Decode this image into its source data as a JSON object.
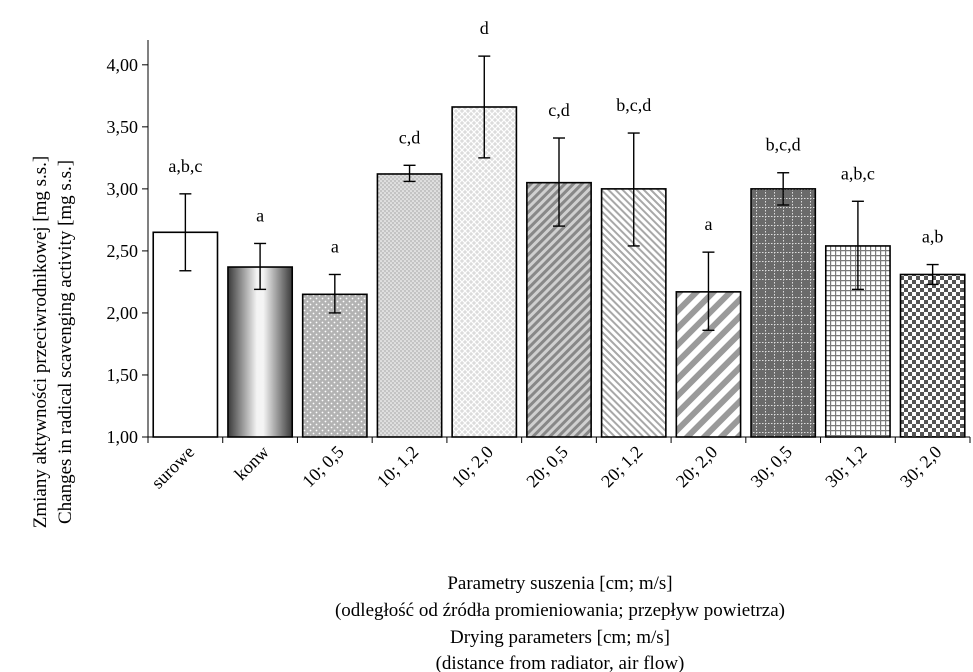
{
  "chart_data": {
    "type": "bar",
    "categories": [
      "surowe",
      "konw",
      "10; 0,5",
      "10; 1,2",
      "10; 2,0",
      "20; 0,5",
      "20; 1,2",
      "20; 2,0",
      "30; 0,5",
      "30; 1,2",
      "30; 2,0"
    ],
    "values": [
      2.65,
      2.37,
      2.15,
      3.12,
      3.66,
      3.05,
      3.0,
      2.17,
      3.0,
      2.54,
      2.31
    ],
    "error_low": [
      2.34,
      2.19,
      2.0,
      3.06,
      3.25,
      2.7,
      2.54,
      1.86,
      2.87,
      2.19,
      2.23
    ],
    "error_high": [
      2.96,
      2.56,
      2.31,
      3.19,
      4.07,
      3.41,
      3.45,
      2.49,
      3.13,
      2.9,
      2.39
    ],
    "significance_labels": [
      "a,b,c",
      "a",
      "a",
      "c,d",
      "d",
      "c,d",
      "b,c,d",
      "a",
      "b,c,d",
      "a,b,c",
      "a,b"
    ],
    "ylim": [
      1.0,
      4.0
    ],
    "yticks": [
      "1,00",
      "1,50",
      "2,00",
      "2,50",
      "3,00",
      "3,50",
      "4,00"
    ],
    "ylabel_lines": [
      "Zmiany aktywności przeciwrodnikowej [mg s.s.]",
      "Changes in radical scavenging activity [mg s.s.]"
    ],
    "xlabel_lines": [
      "Parametry suszenia [cm; m/s]",
      "(odległość od źródła promieniowania; przepływ powietrza)",
      "Drying parameters [cm; m/s]",
      "(distance from radiator, air flow)"
    ],
    "bar_fills": [
      "white",
      "metal-gradient",
      "fine-dots",
      "dense-dots",
      "crosshatch-light",
      "diagonal-dark",
      "diagonal-light",
      "wide-diagonal",
      "dark-grid",
      "small-grid",
      "checker"
    ],
    "grid": false
  }
}
